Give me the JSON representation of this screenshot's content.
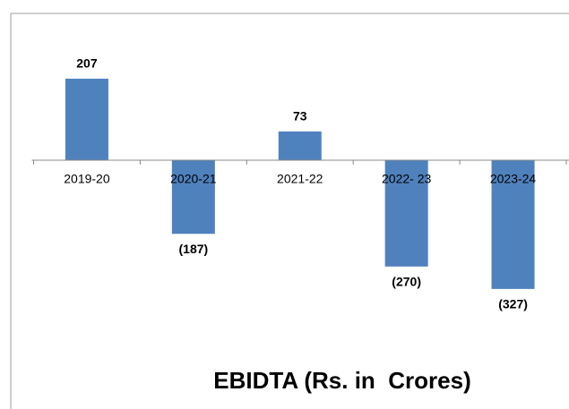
{
  "chart_data": {
    "type": "bar",
    "title": "EBIDTA (Rs. in  Crores)",
    "categories": [
      "2019-20",
      "2020-21",
      "2021-22",
      "2022- 23",
      "2023-24"
    ],
    "values": [
      207,
      -187,
      73,
      -270,
      -327
    ],
    "value_labels": [
      "207",
      "(187)",
      "73",
      "(270)",
      "(327)"
    ],
    "color": "#4f81bd",
    "ylim": [
      -400,
      300
    ]
  }
}
